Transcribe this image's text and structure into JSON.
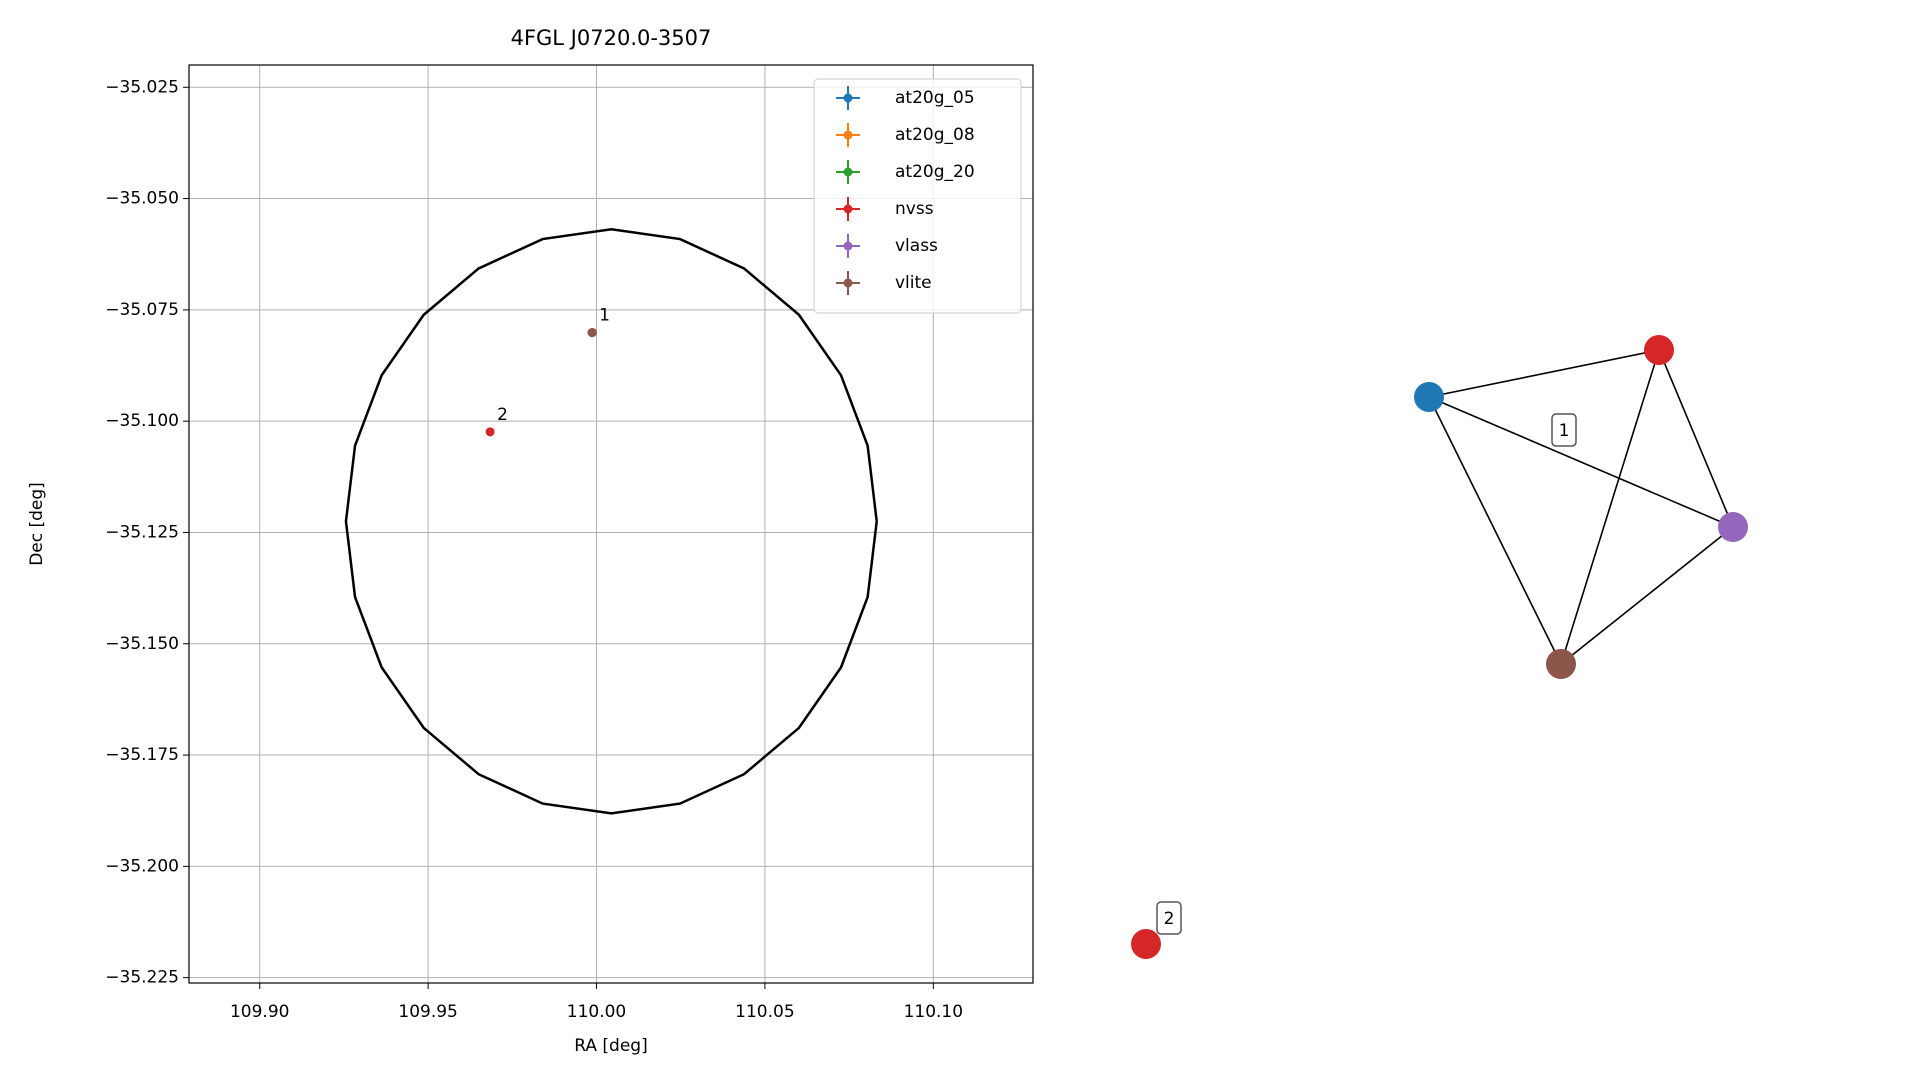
{
  "chart_data": [
    {
      "type": "scatter",
      "title": "4FGL J0720.0-3507",
      "xlabel": "RA [deg]",
      "ylabel": "Dec [deg]",
      "xlim": [
        109.879,
        110.1296
      ],
      "ylim": [
        -35.2262,
        -35.02
      ],
      "xticks": [
        {
          "value": 109.9,
          "label": "109.90"
        },
        {
          "value": 109.95,
          "label": "109.95"
        },
        {
          "value": 110.0,
          "label": "110.00"
        },
        {
          "value": 110.05,
          "label": "110.05"
        },
        {
          "value": 110.1,
          "label": "110.10"
        }
      ],
      "yticks": [
        {
          "value": -35.025,
          "label": "−35.025"
        },
        {
          "value": -35.05,
          "label": "−35.050"
        },
        {
          "value": -35.075,
          "label": "−35.075"
        },
        {
          "value": -35.1,
          "label": "−35.100"
        },
        {
          "value": -35.125,
          "label": "−35.125"
        },
        {
          "value": -35.15,
          "label": "−35.150"
        },
        {
          "value": -35.175,
          "label": "−35.175"
        },
        {
          "value": -35.2,
          "label": "−35.200"
        },
        {
          "value": -35.225,
          "label": "−35.225"
        }
      ],
      "grid": true,
      "legend": "upper right",
      "series": [
        {
          "name": "at20g_05",
          "color": "#1f77b4",
          "x": [
            109.9987
          ],
          "y": [
            -35.0801
          ]
        },
        {
          "name": "at20g_08",
          "color": "#ff7f0e",
          "x": [
            109.9987
          ],
          "y": [
            -35.0801
          ]
        },
        {
          "name": "at20g_20",
          "color": "#2ca02c",
          "x": [
            109.9987
          ],
          "y": [
            -35.0801
          ]
        },
        {
          "name": "nvss",
          "color": "#d62728",
          "x": [
            109.9987,
            109.9684
          ],
          "y": [
            -35.0801,
            -35.1024
          ]
        },
        {
          "name": "vlass",
          "color": "#9467bd",
          "x": [
            109.9987
          ],
          "y": [
            -35.0801
          ]
        },
        {
          "name": "vlite",
          "color": "#8c564b",
          "x": [
            109.9987
          ],
          "y": [
            -35.0801
          ]
        }
      ],
      "lines": [
        {
          "color": "#000000",
          "x": [
            110.0832,
            110.0805,
            110.0726,
            110.0601,
            110.0438,
            110.0248,
            110.0044,
            109.984,
            109.965,
            109.9487,
            109.9362,
            109.9283,
            109.9256,
            109.9283,
            109.9362,
            109.9487,
            109.965,
            109.984,
            110.0044,
            110.0248,
            110.0438,
            110.0601,
            110.0726,
            110.0805,
            110.0832
          ],
          "y": [
            -35.1225,
            -35.1055,
            -35.0897,
            -35.0761,
            -35.0657,
            -35.0591,
            -35.0569,
            -35.0591,
            -35.0657,
            -35.0761,
            -35.0897,
            -35.1055,
            -35.1225,
            -35.1395,
            -35.1553,
            -35.1689,
            -35.1793,
            -35.1859,
            -35.1881,
            -35.1859,
            -35.1793,
            -35.1689,
            -35.1553,
            -35.1395,
            -35.1225
          ]
        }
      ],
      "annotations": [
        {
          "text": "1",
          "x": 109.9987,
          "y": -35.0801
        },
        {
          "text": "2",
          "x": 109.9684,
          "y": -35.1024
        }
      ]
    },
    {
      "type": "network",
      "nodes": [
        {
          "color": "#1f77b4"
        },
        {
          "color": "#d62728"
        },
        {
          "color": "#9467bd"
        },
        {
          "color": "#8c564b"
        },
        {
          "color": "#d62728"
        }
      ],
      "edges": [
        [
          0,
          1
        ],
        [
          0,
          2
        ],
        [
          0,
          3
        ],
        [
          1,
          2
        ],
        [
          1,
          3
        ],
        [
          2,
          3
        ]
      ],
      "labels": [
        "1",
        "2"
      ]
    }
  ]
}
